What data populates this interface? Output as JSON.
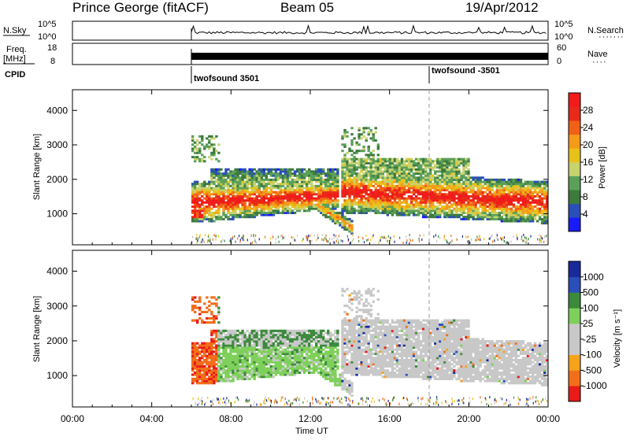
{
  "header": {
    "title": "Prince George (fitACF)",
    "beam": "Beam 05",
    "date": "19/Apr/2012"
  },
  "top_panels": {
    "nsky_label": "N.Sky",
    "nsearch_label": "N.Search",
    "nsky_ticks": [
      "10^5",
      "10^0"
    ],
    "nsearch_ticks": [
      "10^5",
      "10^0"
    ],
    "freq_label_1": "Freq.",
    "freq_label_2": "[MHz]",
    "freq_ticks": [
      "18",
      "8"
    ],
    "nave_label": "Nave",
    "nave_ticks": [
      "60",
      "0"
    ],
    "cpid_label": "CPID",
    "cpid_segments": [
      {
        "label": "twofsound 3501",
        "start_hour": 6.0
      },
      {
        "label": "twofsound -3501",
        "start_hour": 18.0
      }
    ]
  },
  "colors": {
    "power": [
      "#1a1aff",
      "#2a4fb8",
      "#3d7a3d",
      "#5aa05a",
      "#c8d26e",
      "#e8c21a",
      "#f59a1a",
      "#f26018",
      "#e82a1a",
      "#f21a1a"
    ],
    "velocity": [
      "#e81a1a",
      "#f26e1a",
      "#f5a31a",
      "#c8c8c8",
      "#c8c8c8",
      "#7ed05a",
      "#3d8a3d",
      "#2a4fb8",
      "#1a2a9a"
    ],
    "noise": [
      "#3d8a3d",
      "#e8c21a",
      "#c8c8c8",
      "#1a2a9a",
      "#f26e1a"
    ]
  },
  "chart_data": [
    {
      "type": "heatmap",
      "name": "power",
      "xlabel": "",
      "ylabel": "Slant Range [km]",
      "xlim": [
        0,
        24
      ],
      "ylim": [
        100,
        4600
      ],
      "yticks": [
        "1000",
        "2000",
        "3000",
        "4000"
      ],
      "ytick_values": [
        1000,
        2000,
        3000,
        4000
      ],
      "colorbar_label": "Power [dB]",
      "colorbar_ticks": [
        "4",
        "8",
        "12",
        "16",
        "20",
        "24",
        "28"
      ],
      "colorbar_range": [
        0,
        32
      ],
      "marker_hour": 18.0
    },
    {
      "type": "heatmap",
      "name": "velocity",
      "xlabel": "Time UT",
      "ylabel": "Slant Range [km]",
      "xlim": [
        0,
        24
      ],
      "ylim": [
        100,
        4600
      ],
      "yticks": [
        "1000",
        "2000",
        "3000",
        "4000"
      ],
      "ytick_values": [
        1000,
        2000,
        3000,
        4000
      ],
      "xticks": [
        "00:00",
        "04:00",
        "08:00",
        "12:00",
        "16:00",
        "20:00",
        "00:00"
      ],
      "xtick_values": [
        0,
        4,
        8,
        12,
        16,
        20,
        24
      ],
      "colorbar_label": "Velocity [m s⁻¹]",
      "colorbar_ticks": [
        "1000",
        "500",
        "100",
        "25",
        "-25",
        "-100",
        "-500",
        "-1000"
      ],
      "marker_hour": 18.0
    }
  ]
}
